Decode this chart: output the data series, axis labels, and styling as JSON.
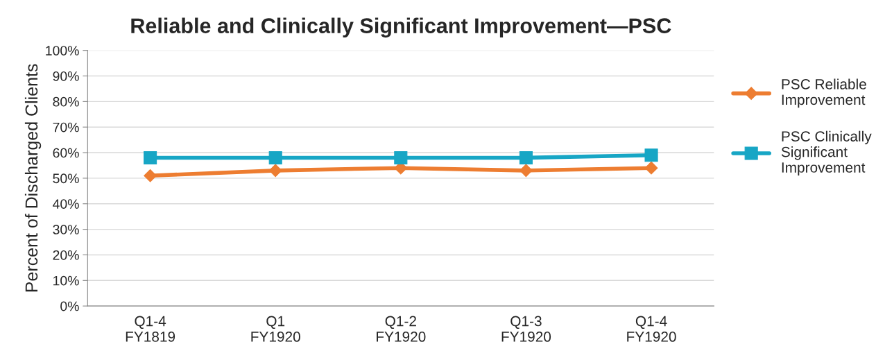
{
  "chart_data": {
    "type": "line",
    "title": "Reliable and Clinically Significant Improvement—PSC",
    "ylabel": "Percent of Discharged Clients",
    "categories": [
      "Q1-4\nFY1819",
      "Q1\nFY1920",
      "Q1-2\nFY1920",
      "Q1-3\nFY1920",
      "Q1-4\nFY1920"
    ],
    "series": [
      {
        "name": "PSC Reliable\nImprovement",
        "color": "#ed7d31",
        "marker": "diamond",
        "values": [
          51,
          53,
          54,
          53,
          54
        ]
      },
      {
        "name": "PSC Clinically\nSignificant\nImprovement",
        "color": "#17a6c5",
        "marker": "square",
        "values": [
          58,
          58,
          58,
          58,
          59
        ]
      }
    ],
    "ylim": [
      0,
      100
    ],
    "yticks": [
      {
        "value": 0,
        "label": "0%"
      },
      {
        "value": 10,
        "label": "10%"
      },
      {
        "value": 20,
        "label": "20%"
      },
      {
        "value": 30,
        "label": "30%"
      },
      {
        "value": 40,
        "label": "40%"
      },
      {
        "value": 50,
        "label": "50%"
      },
      {
        "value": 60,
        "label": "60%"
      },
      {
        "value": 70,
        "label": "70%"
      },
      {
        "value": 80,
        "label": "80%"
      },
      {
        "value": 90,
        "label": "90%"
      },
      {
        "value": 100,
        "label": "100%"
      }
    ],
    "grid": "y",
    "legend": "right",
    "line_style": "solid"
  }
}
